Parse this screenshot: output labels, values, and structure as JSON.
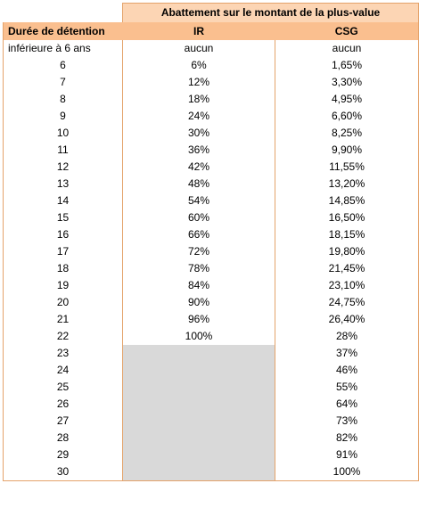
{
  "header": {
    "super_title": "Abattement sur le montant de la plus-value",
    "col1": "Durée de détention",
    "col2": "IR",
    "col3": "CSG"
  },
  "colors": {
    "super_header_bg": "#fcd5b4",
    "header_bg": "#fabf8f",
    "grey_fill": "#d9d9d9",
    "border": "#e4a36b"
  },
  "rows": [
    {
      "duree": "inférieure à 6 ans",
      "ir": "aucun",
      "csg": "aucun"
    },
    {
      "duree": "6",
      "ir": "6%",
      "csg": "1,65%"
    },
    {
      "duree": "7",
      "ir": "12%",
      "csg": "3,30%"
    },
    {
      "duree": "8",
      "ir": "18%",
      "csg": "4,95%"
    },
    {
      "duree": "9",
      "ir": "24%",
      "csg": "6,60%"
    },
    {
      "duree": "10",
      "ir": "30%",
      "csg": "8,25%"
    },
    {
      "duree": "11",
      "ir": "36%",
      "csg": "9,90%"
    },
    {
      "duree": "12",
      "ir": "42%",
      "csg": "11,55%"
    },
    {
      "duree": "13",
      "ir": "48%",
      "csg": "13,20%"
    },
    {
      "duree": "14",
      "ir": "54%",
      "csg": "14,85%"
    },
    {
      "duree": "15",
      "ir": "60%",
      "csg": "16,50%"
    },
    {
      "duree": "16",
      "ir": "66%",
      "csg": "18,15%"
    },
    {
      "duree": "17",
      "ir": "72%",
      "csg": "19,80%"
    },
    {
      "duree": "18",
      "ir": "78%",
      "csg": "21,45%"
    },
    {
      "duree": "19",
      "ir": "84%",
      "csg": "23,10%"
    },
    {
      "duree": "20",
      "ir": "90%",
      "csg": "24,75%"
    },
    {
      "duree": "21",
      "ir": "96%",
      "csg": "26,40%"
    },
    {
      "duree": "22",
      "ir": "100%",
      "csg": "28%"
    },
    {
      "duree": "23",
      "ir": "",
      "csg": "37%"
    },
    {
      "duree": "24",
      "ir": "",
      "csg": "46%"
    },
    {
      "duree": "25",
      "ir": "",
      "csg": "55%"
    },
    {
      "duree": "26",
      "ir": "",
      "csg": "64%"
    },
    {
      "duree": "27",
      "ir": "",
      "csg": "73%"
    },
    {
      "duree": "28",
      "ir": "",
      "csg": "82%"
    },
    {
      "duree": "29",
      "ir": "",
      "csg": "91%"
    },
    {
      "duree": "30",
      "ir": "",
      "csg": "100%"
    }
  ]
}
